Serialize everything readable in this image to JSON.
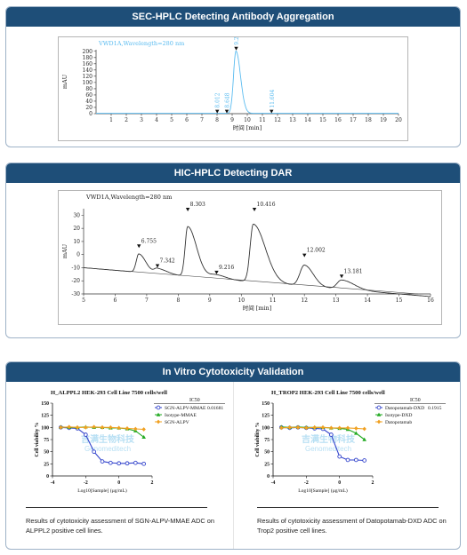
{
  "panels": {
    "sec": {
      "title": "SEC-HPLC Detecting Antibody Aggregation"
    },
    "hic": {
      "title": "HIC-HPLC Detecting DAR"
    },
    "cyto": {
      "title": "In Vitro Cytotoxicity Validation",
      "caption_left": "Results of cytotoxicity assessment of SGN-ALPV-MMAE ADC on ALPPL2 positive cell lines.",
      "caption_right": "Results of cytotoxicity assessment of Datopotamab-DXD ADC on Trop2 positive cell lines."
    }
  },
  "colors": {
    "header": "#1e4e78",
    "sec_trace": "#5bbcf0",
    "hic_trace": "#333333"
  },
  "chart_data": [
    {
      "id": "sec",
      "type": "line",
      "title": "VWD1A,Wavelength=280 nm",
      "xlabel": "时间 [min]",
      "ylabel": "mAU",
      "xlim": [
        0,
        20
      ],
      "ylim": [
        0,
        205
      ],
      "xticks": [
        1,
        2,
        3,
        4,
        5,
        6,
        7,
        8,
        9,
        10,
        11,
        12,
        13,
        14,
        15,
        16,
        17,
        18,
        19,
        20
      ],
      "yticks": [
        0,
        20,
        40,
        60,
        80,
        100,
        120,
        140,
        160,
        180,
        200
      ],
      "peaks": [
        {
          "x": 8.012,
          "y": 1,
          "label": "8.012"
        },
        {
          "x": 8.648,
          "y": 1,
          "label": "8.648"
        },
        {
          "x": 9.266,
          "y": 203,
          "label": "9.266"
        },
        {
          "x": 11.604,
          "y": 1,
          "label": "11.604"
        }
      ]
    },
    {
      "id": "hic",
      "type": "line",
      "title": "VWD1A,Wavelength=280 nm",
      "xlabel": "时间 [min]",
      "ylabel": "mAU",
      "xlim": [
        5,
        16
      ],
      "ylim": [
        -30,
        35
      ],
      "xticks": [
        5,
        6,
        7,
        8,
        9,
        10,
        11,
        12,
        13,
        14,
        15,
        16
      ],
      "yticks": [
        -30,
        -20,
        -10,
        0,
        10,
        20,
        30
      ],
      "peaks": [
        {
          "x": 6.755,
          "y": 5,
          "label": "6.755"
        },
        {
          "x": 7.342,
          "y": -10,
          "label": "7.342"
        },
        {
          "x": 8.303,
          "y": 33,
          "label": "8.303"
        },
        {
          "x": 9.216,
          "y": -15,
          "label": "9.216"
        },
        {
          "x": 10.416,
          "y": 33,
          "label": "10.416"
        },
        {
          "x": 12.002,
          "y": -2,
          "label": "12.002"
        },
        {
          "x": 13.181,
          "y": -18,
          "label": "13.181"
        }
      ]
    },
    {
      "id": "cyto-left",
      "type": "line",
      "title": "H_ALPPL2 HEK-293 Cell Line 7500 cells/well",
      "xlabel": "Log10[Sample] (µg/mL)",
      "ylabel": "Cell viability %",
      "xlim": [
        -4,
        2
      ],
      "ylim": [
        0,
        150
      ],
      "xticks": [
        -4,
        -2,
        0,
        2
      ],
      "yticks": [
        0,
        25,
        50,
        75,
        100,
        125,
        150
      ],
      "legend_header": "IC50",
      "watermark": [
        "吉满生物科技",
        "Genomeditech"
      ],
      "series": [
        {
          "name": "SGN-ALPV-MMAE",
          "ic50": "0.01681",
          "color": "#3344cc",
          "marker": "circle",
          "x": [
            -3.5,
            -3.0,
            -2.5,
            -2.0,
            -1.5,
            -1.0,
            -0.5,
            0.0,
            0.5,
            1.0,
            1.5
          ],
          "y": [
            100,
            99,
            98,
            85,
            50,
            30,
            27,
            26,
            26,
            27,
            25
          ]
        },
        {
          "name": "Isotype-MMAE",
          "ic50": "",
          "color": "#22aa22",
          "marker": "triangle",
          "x": [
            -3.5,
            -3.0,
            -2.5,
            -2.0,
            -1.5,
            -1.0,
            -0.5,
            0.0,
            0.5,
            1.0,
            1.5
          ],
          "y": [
            101,
            100,
            100,
            101,
            100,
            100,
            99,
            99,
            97,
            93,
            80
          ]
        },
        {
          "name": "SGN-ALPV",
          "ic50": "",
          "color": "#f0a020",
          "marker": "diamond",
          "x": [
            -3.5,
            -3.0,
            -2.5,
            -2.0,
            -1.5,
            -1.0,
            -0.5,
            0.0,
            0.5,
            1.0,
            1.5
          ],
          "y": [
            100,
            101,
            100,
            100,
            101,
            100,
            100,
            99,
            98,
            97,
            96
          ]
        }
      ]
    },
    {
      "id": "cyto-right",
      "type": "line",
      "title": "H_TROP2 HEK-293 Cell Line 7500 cells/well",
      "xlabel": "Log10[Sample] (µg/mL)",
      "ylabel": "Cell viability %",
      "xlim": [
        -4,
        2
      ],
      "ylim": [
        0,
        150
      ],
      "xticks": [
        -4,
        -2,
        0,
        2
      ],
      "yticks": [
        0,
        25,
        50,
        75,
        100,
        125,
        150
      ],
      "legend_header": "IC50",
      "watermark": [
        "吉满生物科技",
        "Genomeditech"
      ],
      "series": [
        {
          "name": "Datopotamab-DXD",
          "ic50": "0.1915",
          "color": "#3344cc",
          "marker": "circle",
          "x": [
            -3.5,
            -3.0,
            -2.5,
            -2.0,
            -1.5,
            -1.0,
            -0.5,
            0.0,
            0.5,
            1.0,
            1.5
          ],
          "y": [
            100,
            99,
            100,
            99,
            98,
            97,
            85,
            40,
            33,
            33,
            32
          ]
        },
        {
          "name": "Isotype-DXD",
          "ic50": "",
          "color": "#22aa22",
          "marker": "triangle",
          "x": [
            -3.5,
            -3.0,
            -2.5,
            -2.0,
            -1.5,
            -1.0,
            -0.5,
            0.0,
            0.5,
            1.0,
            1.5
          ],
          "y": [
            101,
            100,
            101,
            100,
            100,
            100,
            99,
            98,
            96,
            88,
            75
          ]
        },
        {
          "name": "Datopotamab",
          "ic50": "",
          "color": "#f0a020",
          "marker": "diamond",
          "x": [
            -3.5,
            -3.0,
            -2.5,
            -2.0,
            -1.5,
            -1.0,
            -0.5,
            0.0,
            0.5,
            1.0,
            1.5
          ],
          "y": [
            99,
            100,
            100,
            99,
            100,
            100,
            99,
            99,
            99,
            98,
            97
          ]
        }
      ]
    }
  ]
}
